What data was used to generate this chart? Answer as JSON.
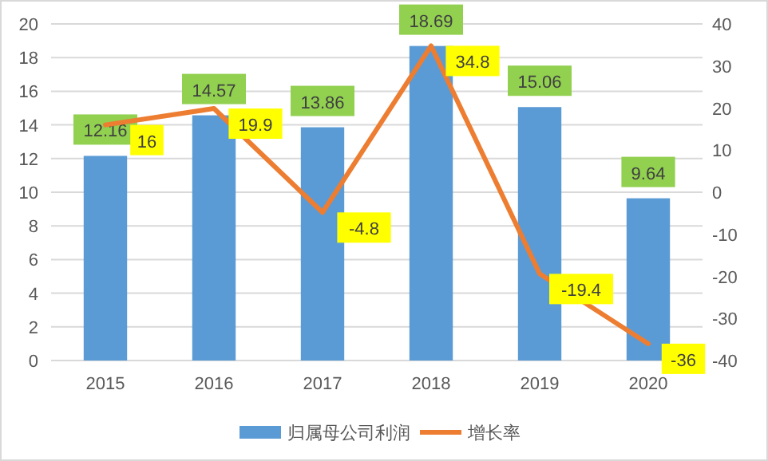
{
  "chart_data": {
    "type": "bar",
    "categories": [
      "2015",
      "2016",
      "2017",
      "2018",
      "2019",
      "2020"
    ],
    "series": [
      {
        "name": "归属母公司利润",
        "color": "#5b9bd5",
        "values": [
          12.16,
          14.57,
          13.86,
          18.69,
          15.06,
          9.64
        ]
      },
      {
        "name": "增长率",
        "type": "line",
        "axis": "y2",
        "color": "#ed7d31",
        "values": [
          16,
          19.9,
          -4.8,
          34.8,
          -19.4,
          -36
        ]
      }
    ],
    "ylim": [
      0,
      20
    ],
    "yticks": [
      0,
      2,
      4,
      6,
      8,
      10,
      12,
      14,
      16,
      18,
      20
    ],
    "y2lim": [
      -40,
      40
    ],
    "y2ticks": [
      -40,
      -30,
      -20,
      -10,
      0,
      10,
      20,
      30,
      40
    ],
    "grid": "y",
    "legend": "bottom",
    "data_labels": true,
    "marker": "none"
  }
}
